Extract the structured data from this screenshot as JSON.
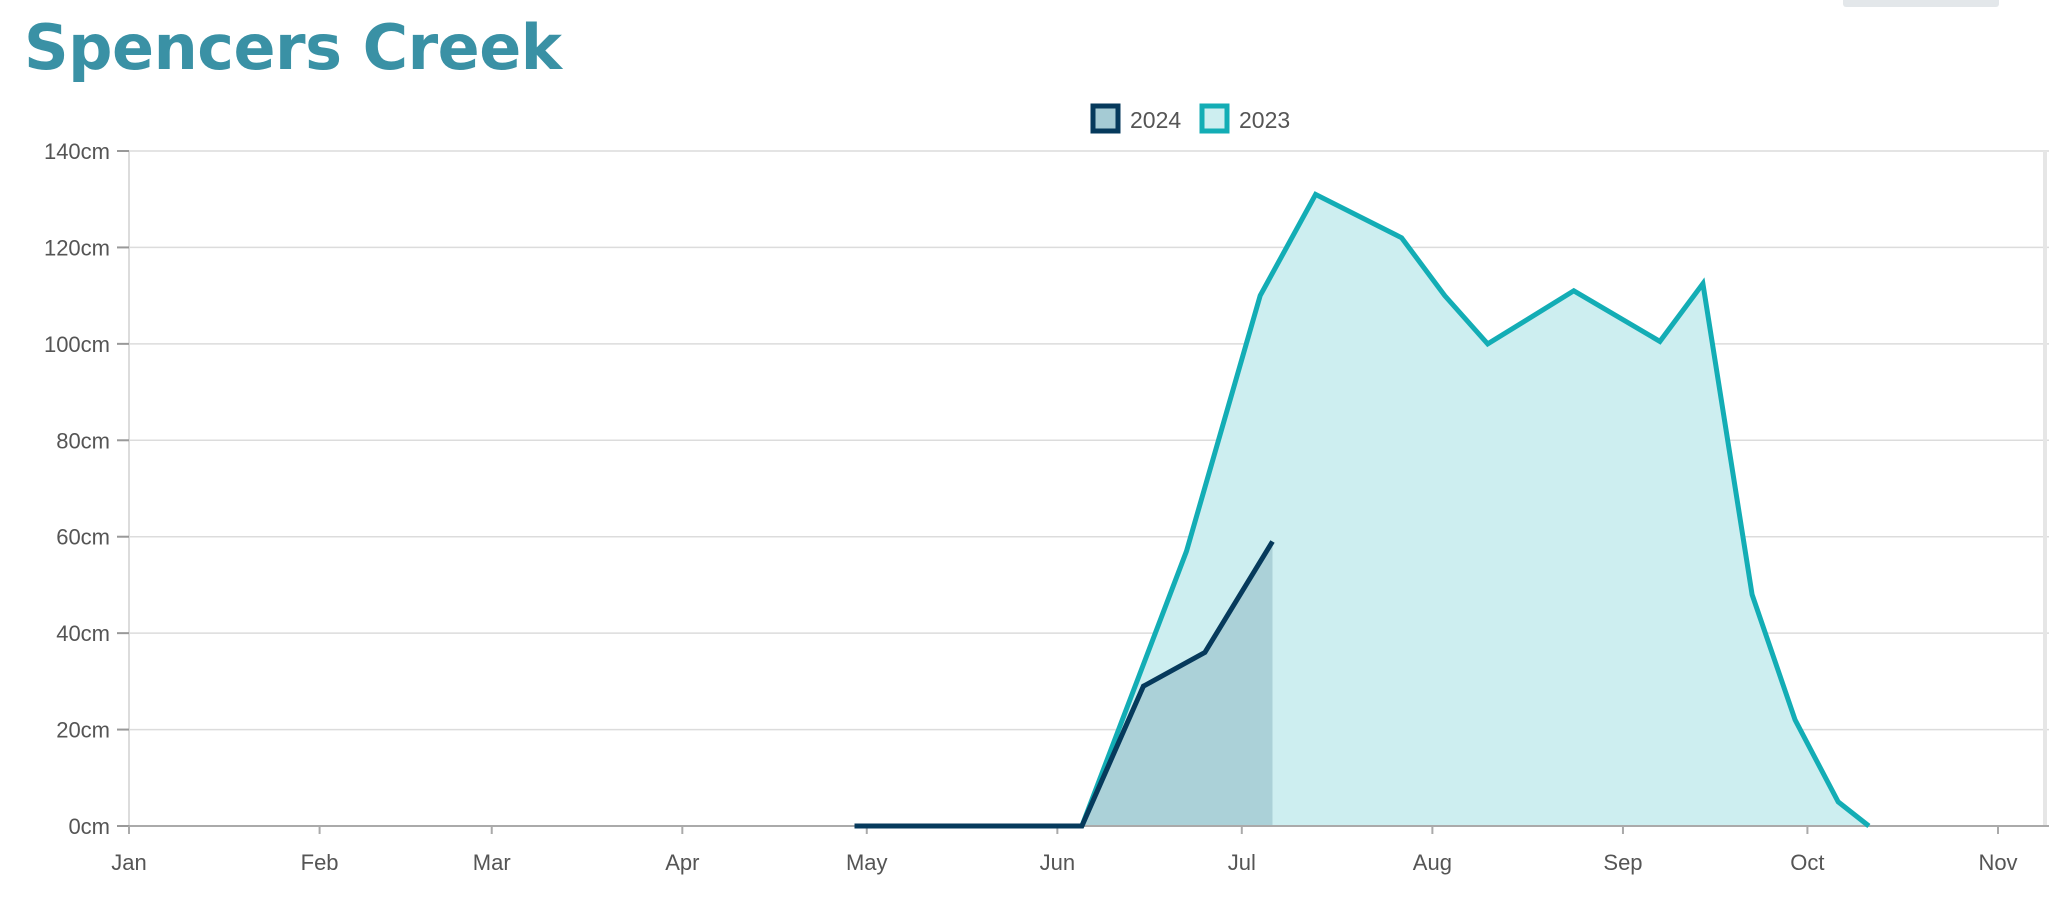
{
  "page": {
    "title": "Spencers Creek"
  },
  "colors": {
    "title": "#3a91a5",
    "series_2024": "#063a5c",
    "series_2024_fill": "#a5cbd4",
    "series_2023": "#13adb5",
    "series_2023_fill": "#cdeef0",
    "grid": "#dcdcdc",
    "axis_text": "#555555"
  },
  "chart_data": {
    "type": "area",
    "title": "",
    "xlabel": "",
    "ylabel": "",
    "grid": true,
    "legend": "top-center",
    "ylim": [
      0,
      140
    ],
    "xlim": [
      "01-01",
      "11-01"
    ],
    "y_ticks": [
      0,
      20,
      40,
      60,
      80,
      100,
      120,
      140
    ],
    "y_tick_labels": [
      "0cm",
      "20cm",
      "40cm",
      "60cm",
      "80cm",
      "100cm",
      "120cm",
      "140cm"
    ],
    "x_ticks": [
      "01-01",
      "02-01",
      "03-01",
      "04-01",
      "05-01",
      "06-01",
      "07-01",
      "08-01",
      "09-01",
      "10-01",
      "11-01"
    ],
    "x_tick_labels": [
      "Jan",
      "Feb",
      "Mar",
      "Apr",
      "May",
      "Jun",
      "Jul",
      "Aug",
      "Sep",
      "Oct",
      "Nov"
    ],
    "series": [
      {
        "name": "2024",
        "color": "#063a5c",
        "fill": "#a5cbd4",
        "points": [
          {
            "x": "04-29",
            "y": 0
          },
          {
            "x": "06-05",
            "y": 0
          },
          {
            "x": "06-15",
            "y": 29
          },
          {
            "x": "06-25",
            "y": 36
          },
          {
            "x": "07-06",
            "y": 59
          }
        ]
      },
      {
        "name": "2023",
        "color": "#13adb5",
        "fill": "#cdeef0",
        "points": [
          {
            "x": "06-05",
            "y": 0
          },
          {
            "x": "06-22",
            "y": 57
          },
          {
            "x": "07-04",
            "y": 110
          },
          {
            "x": "07-13",
            "y": 131
          },
          {
            "x": "07-27",
            "y": 122
          },
          {
            "x": "08-03",
            "y": 110
          },
          {
            "x": "08-10",
            "y": 100
          },
          {
            "x": "08-24",
            "y": 111
          },
          {
            "x": "09-07",
            "y": 100.5
          },
          {
            "x": "09-14",
            "y": 112.5
          },
          {
            "x": "09-22",
            "y": 48
          },
          {
            "x": "09-29",
            "y": 22
          },
          {
            "x": "10-06",
            "y": 5
          },
          {
            "x": "10-11",
            "y": 0
          }
        ]
      }
    ]
  }
}
